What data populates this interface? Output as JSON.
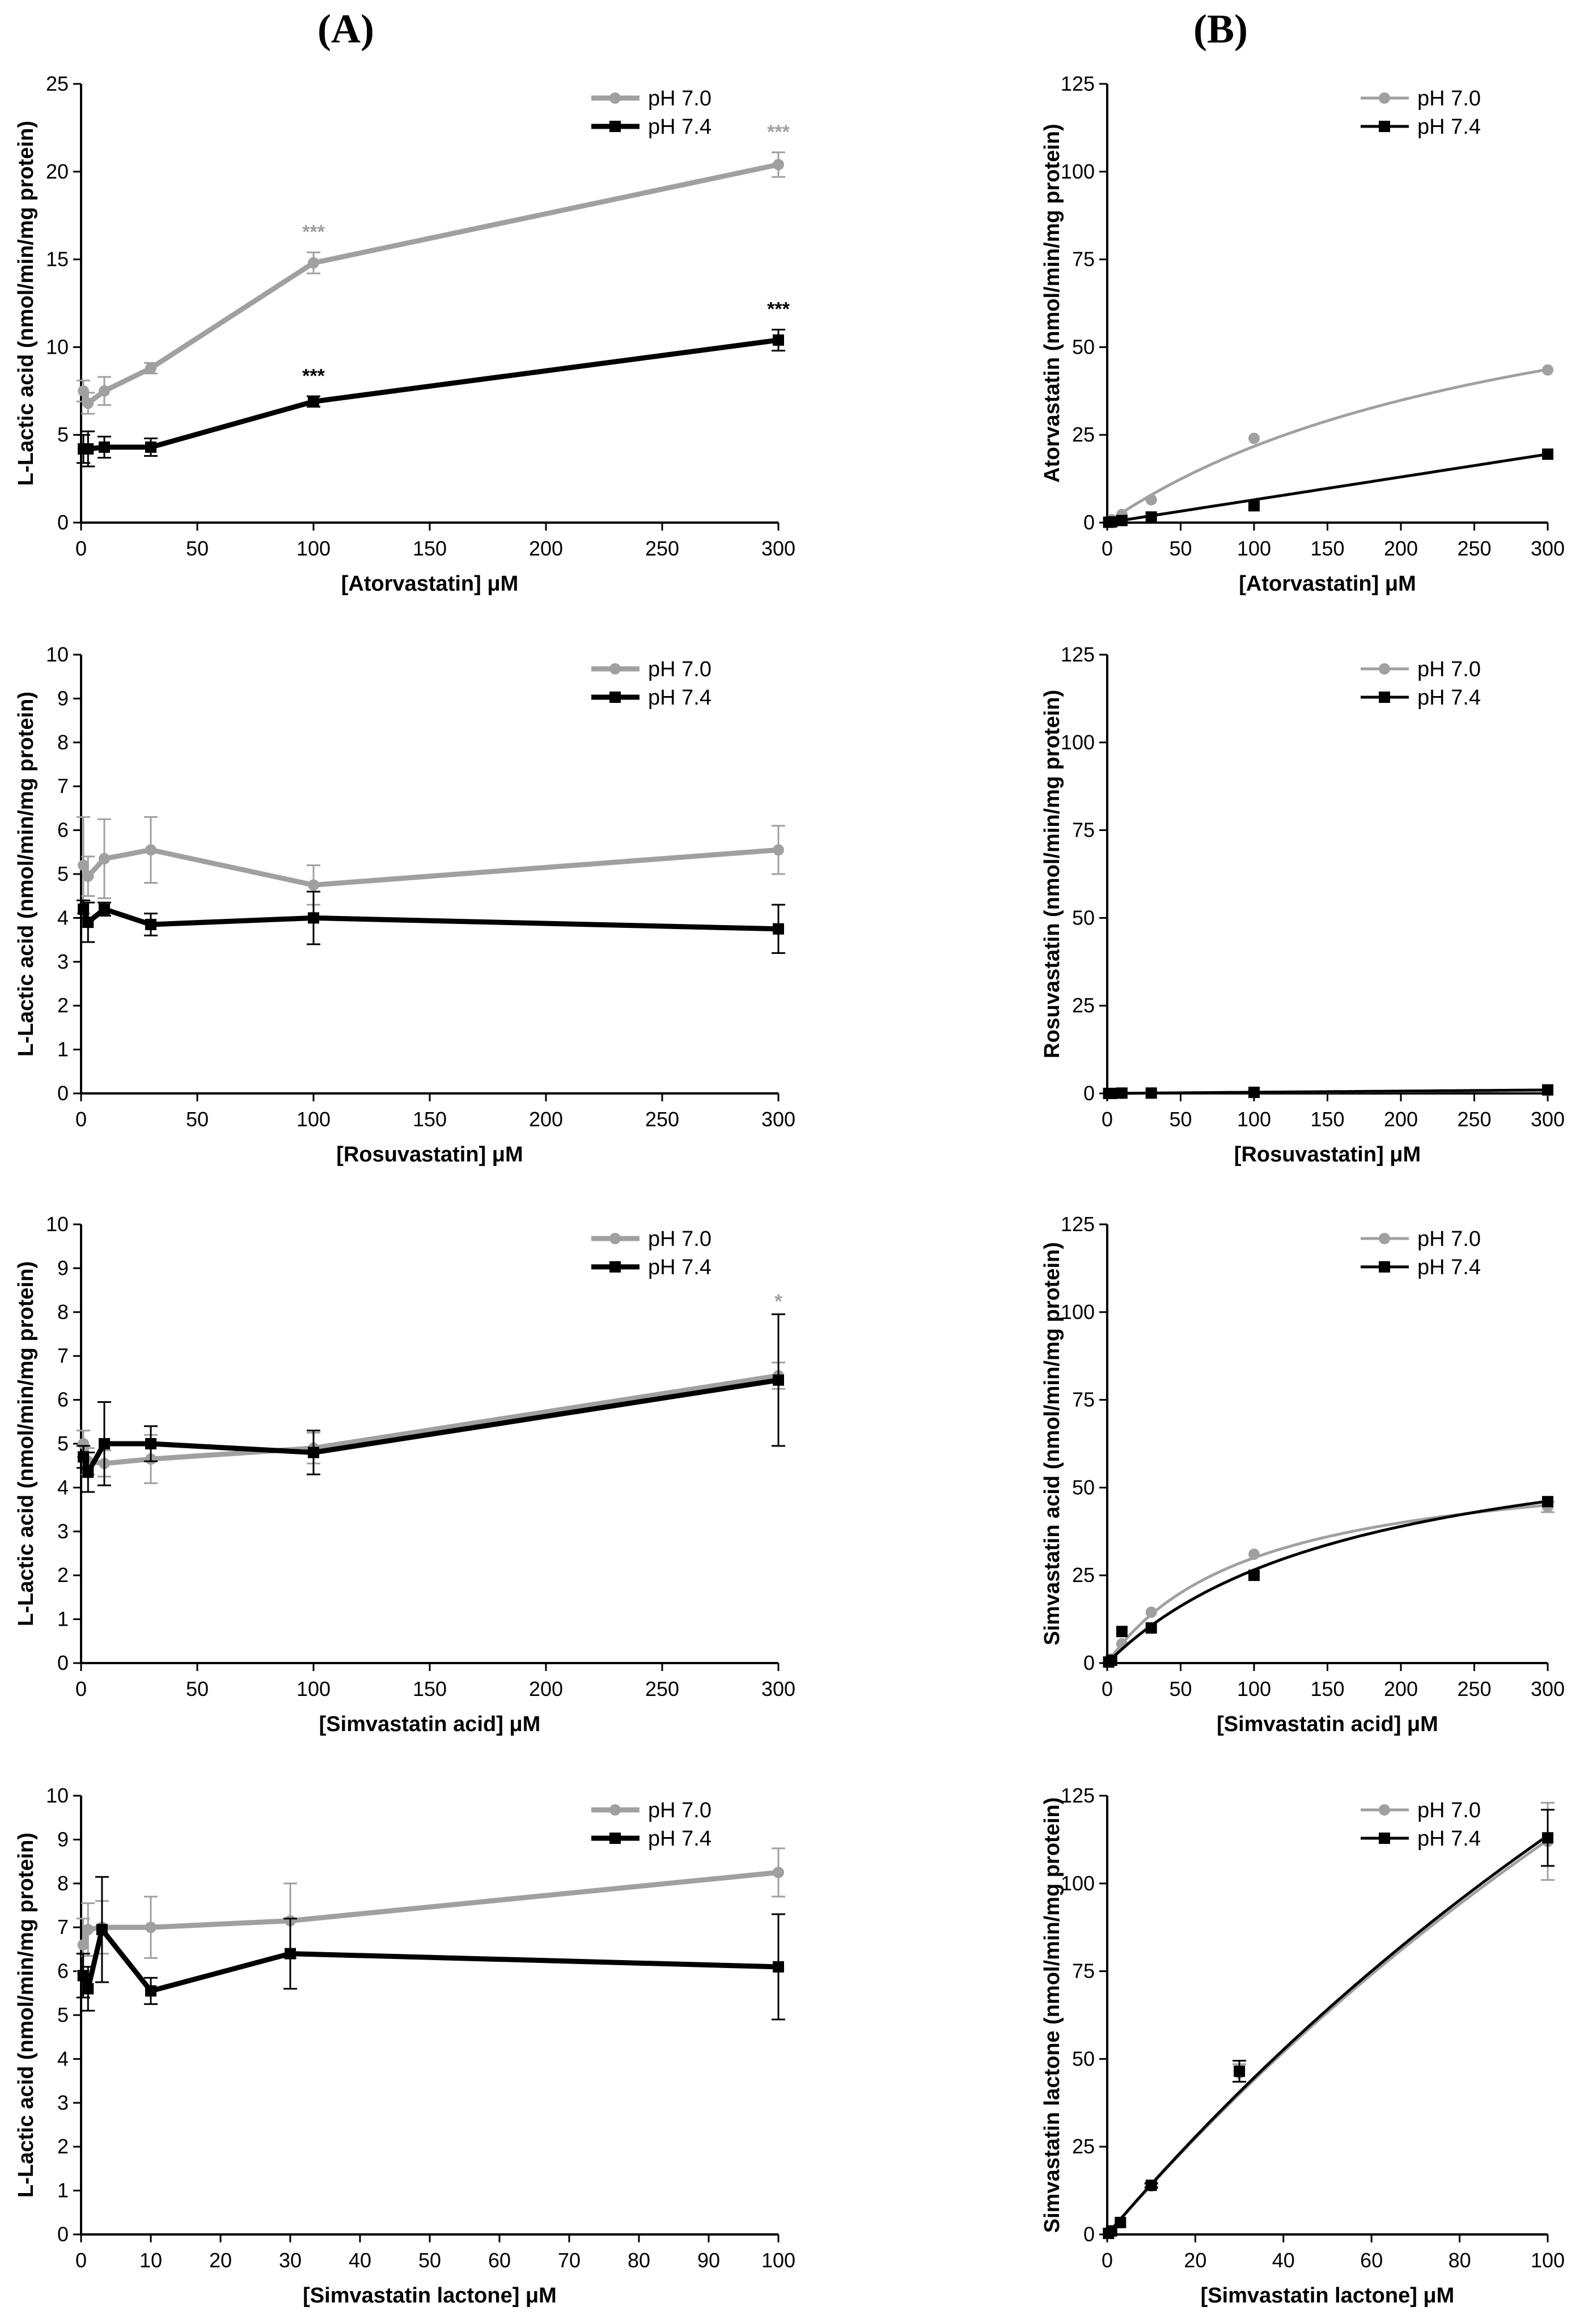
{
  "column_labels": {
    "a": "(A)",
    "b": "(B)"
  },
  "colors": {
    "ph70": "#a0a0a0",
    "ph74": "#000000"
  },
  "chart_data": [
    {
      "id": "A1",
      "type": "line",
      "title": "",
      "xlabel": "[Atorvastatin] μM",
      "ylabel": "L-Lactic acid (nmol/min/mg protein)",
      "xlim": [
        0,
        300
      ],
      "ylim": [
        0,
        25
      ],
      "xticks": [
        0,
        50,
        100,
        150,
        200,
        250,
        300
      ],
      "yticks": [
        0,
        5,
        10,
        15,
        20,
        25
      ],
      "legend": [
        "pH 7.0",
        "pH 7.4"
      ],
      "legend_position": "top-right",
      "series": [
        {
          "name": "pH 7.0",
          "x": [
            1,
            3,
            10,
            30,
            100,
            300
          ],
          "y": [
            7.5,
            6.8,
            7.5,
            8.8,
            14.8,
            20.4
          ],
          "err": [
            0.6,
            0.6,
            0.8,
            0.3,
            0.6,
            0.7
          ],
          "annotations": [
            {
              "x": 100,
              "y": 16.2,
              "text": "***"
            },
            {
              "x": 300,
              "y": 21.9,
              "text": "***"
            }
          ]
        },
        {
          "name": "pH 7.4",
          "x": [
            1,
            3,
            10,
            30,
            100,
            300
          ],
          "y": [
            4.2,
            4.2,
            4.3,
            4.3,
            6.9,
            10.4
          ],
          "err": [
            0.8,
            1.0,
            0.6,
            0.5,
            0.3,
            0.6
          ],
          "annotations": [
            {
              "x": 100,
              "y": 8.0,
              "text": "***"
            },
            {
              "x": 300,
              "y": 11.8,
              "text": "***"
            }
          ]
        }
      ]
    },
    {
      "id": "B1",
      "type": "scatter",
      "title": "",
      "xlabel": "[Atorvastatin] μM",
      "ylabel": "Atorvastatin (nmol/min/mg protein)",
      "xlim": [
        0,
        300
      ],
      "ylim": [
        0,
        125
      ],
      "xticks": [
        0,
        50,
        100,
        150,
        200,
        250,
        300
      ],
      "yticks": [
        0,
        25,
        50,
        75,
        100,
        125
      ],
      "legend": [
        "pH 7.0",
        "pH 7.4"
      ],
      "legend_position": "top-right",
      "series": [
        {
          "name": "pH 7.0",
          "x": [
            1,
            3,
            10,
            30,
            100,
            300
          ],
          "y": [
            0.3,
            0.8,
            2.3,
            6.5,
            24.0,
            43.5
          ],
          "fit": {
            "type": "mm",
            "vmax": 88,
            "km": 305
          }
        },
        {
          "name": "pH 7.4",
          "x": [
            1,
            3,
            10,
            30,
            100,
            300
          ],
          "y": [
            0.1,
            0.2,
            0.6,
            1.6,
            4.8,
            19.5
          ],
          "fit": {
            "type": "linear",
            "slope": 0.065
          }
        }
      ]
    },
    {
      "id": "A2",
      "type": "line",
      "title": "",
      "xlabel": "[Rosuvastatin] μM",
      "ylabel": "L-Lactic acid (nmol/min/mg protein)",
      "xlim": [
        0,
        300
      ],
      "ylim": [
        0,
        10
      ],
      "xticks": [
        0,
        50,
        100,
        150,
        200,
        250,
        300
      ],
      "yticks": [
        0,
        1,
        2,
        3,
        4,
        5,
        6,
        7,
        8,
        9,
        10
      ],
      "legend": [
        "pH 7.0",
        "pH 7.4"
      ],
      "legend_position": "top-right",
      "series": [
        {
          "name": "pH 7.0",
          "x": [
            1,
            3,
            10,
            30,
            100,
            300
          ],
          "y": [
            5.2,
            4.95,
            5.35,
            5.55,
            4.75,
            5.55
          ],
          "err": [
            1.1,
            0.45,
            0.9,
            0.75,
            0.45,
            0.55
          ]
        },
        {
          "name": "pH 7.4",
          "x": [
            1,
            3,
            10,
            30,
            100,
            300
          ],
          "y": [
            4.2,
            3.9,
            4.2,
            3.85,
            4.0,
            3.75
          ],
          "err": [
            0.2,
            0.45,
            0.15,
            0.25,
            0.6,
            0.55
          ]
        }
      ]
    },
    {
      "id": "B2",
      "type": "scatter",
      "title": "",
      "xlabel": "[Rosuvastatin] μM",
      "ylabel": "Rosuvastatin (nmol/min/mg protein)",
      "xlim": [
        0,
        300
      ],
      "ylim": [
        0,
        125
      ],
      "xticks": [
        0,
        50,
        100,
        150,
        200,
        250,
        300
      ],
      "yticks": [
        0,
        25,
        50,
        75,
        100,
        125
      ],
      "legend": [
        "pH 7.0",
        "pH 7.4"
      ],
      "legend_position": "top-right",
      "series": [
        {
          "name": "pH 7.0",
          "x": [
            1,
            3,
            10,
            30,
            100,
            300
          ],
          "y": [
            0.0,
            0.0,
            0.0,
            0.1,
            0.3,
            0.9
          ],
          "fit": {
            "type": "linear",
            "slope": 0.003
          }
        },
        {
          "name": "pH 7.4",
          "x": [
            1,
            3,
            10,
            30,
            100,
            300
          ],
          "y": [
            0.0,
            0.0,
            0.1,
            0.1,
            0.3,
            1.0
          ],
          "fit": {
            "type": "linear",
            "slope": 0.0033
          }
        }
      ]
    },
    {
      "id": "A3",
      "type": "line",
      "title": "",
      "xlabel": "[Simvastatin acid] μM",
      "ylabel": "L-Lactic acid (nmol/min/mg protein)",
      "xlim": [
        0,
        300
      ],
      "ylim": [
        0,
        10
      ],
      "xticks": [
        0,
        50,
        100,
        150,
        200,
        250,
        300
      ],
      "yticks": [
        0,
        1,
        2,
        3,
        4,
        5,
        6,
        7,
        8,
        9,
        10
      ],
      "legend": [
        "pH 7.0",
        "pH 7.4"
      ],
      "legend_position": "top-right",
      "series": [
        {
          "name": "pH 7.0",
          "x": [
            1,
            3,
            10,
            30,
            100,
            300
          ],
          "y": [
            5.0,
            4.6,
            4.55,
            4.65,
            4.9,
            6.55
          ],
          "err": [
            0.3,
            0.3,
            0.3,
            0.55,
            0.35,
            0.3
          ],
          "annotations": [
            {
              "x": 300,
              "y": 8.1,
              "text": "*"
            }
          ]
        },
        {
          "name": "pH 7.4",
          "x": [
            1,
            3,
            10,
            30,
            100,
            300
          ],
          "y": [
            4.7,
            4.35,
            5.0,
            5.0,
            4.8,
            6.45
          ],
          "err": [
            0.25,
            0.45,
            0.95,
            0.4,
            0.5,
            1.5
          ]
        }
      ]
    },
    {
      "id": "B3",
      "type": "scatter",
      "title": "",
      "xlabel": "[Simvastatin acid] μM",
      "ylabel": "Simvastatin acid (nmol/min/mg protein)",
      "xlim": [
        0,
        300
      ],
      "ylim": [
        0,
        125
      ],
      "xticks": [
        0,
        50,
        100,
        150,
        200,
        250,
        300
      ],
      "yticks": [
        0,
        25,
        50,
        75,
        100,
        125
      ],
      "legend": [
        "pH 7.0",
        "pH 7.4"
      ],
      "legend_position": "top-right",
      "series": [
        {
          "name": "pH 7.0",
          "x": [
            1,
            3,
            10,
            30,
            100,
            300
          ],
          "y": [
            0.5,
            1.2,
            5.5,
            14.5,
            31.0,
            44.5
          ],
          "err": [
            0,
            0,
            0,
            0,
            0,
            1.5
          ],
          "fit": {
            "type": "mm",
            "vmax": 60,
            "km": 100
          }
        },
        {
          "name": "pH 7.4",
          "x": [
            1,
            3,
            10,
            30,
            100,
            300
          ],
          "y": [
            0.3,
            0.8,
            9.0,
            10.0,
            25.0,
            46.0
          ],
          "fit": {
            "type": "mm",
            "vmax": 73,
            "km": 175
          }
        }
      ]
    },
    {
      "id": "A4",
      "type": "line",
      "title": "",
      "xlabel": "[Simvastatin lactone] μM",
      "ylabel": "L-Lactic acid (nmol/min/mg protein)",
      "xlim": [
        0,
        100
      ],
      "ylim": [
        0,
        10
      ],
      "xticks": [
        0,
        10,
        20,
        30,
        40,
        50,
        60,
        70,
        80,
        90,
        100
      ],
      "yticks": [
        0,
        1,
        2,
        3,
        4,
        5,
        6,
        7,
        8,
        9,
        10
      ],
      "legend": [
        "pH 7.0",
        "pH 7.4"
      ],
      "legend_position": "top-right",
      "series": [
        {
          "name": "pH 7.0",
          "x": [
            0.3,
            1,
            3,
            10,
            30,
            100
          ],
          "y": [
            6.6,
            6.95,
            7.0,
            7.0,
            7.15,
            8.25
          ],
          "err": [
            0.6,
            0.6,
            0.6,
            0.7,
            0.85,
            0.55
          ]
        },
        {
          "name": "pH 7.4",
          "x": [
            0.3,
            1,
            3,
            10,
            30,
            100
          ],
          "y": [
            5.9,
            5.6,
            6.95,
            5.55,
            6.4,
            6.1
          ],
          "err": [
            0.5,
            0.5,
            1.2,
            0.3,
            0.8,
            1.2
          ]
        }
      ]
    },
    {
      "id": "B4",
      "type": "scatter",
      "title": "",
      "xlabel": "[Simvastatin lactone] μM",
      "ylabel": "Simvastatin lactone (nmol/min/mg protein)",
      "xlim": [
        0,
        100
      ],
      "ylim": [
        0,
        125
      ],
      "xticks": [
        0,
        20,
        40,
        60,
        80,
        100
      ],
      "yticks": [
        0,
        25,
        50,
        75,
        100,
        125
      ],
      "legend": [
        "pH 7.0",
        "pH 7.4"
      ],
      "legend_position": "top-right",
      "series": [
        {
          "name": "pH 7.0",
          "x": [
            0.3,
            1,
            3,
            10,
            30,
            100
          ],
          "y": [
            0.3,
            1.0,
            3.3,
            13.8,
            46.0,
            112.0
          ],
          "err": [
            0,
            0,
            0,
            0.6,
            2.5,
            11.0
          ],
          "fit": {
            "type": "mm",
            "vmax": 500,
            "km": 345
          }
        },
        {
          "name": "pH 7.4",
          "x": [
            0.3,
            1,
            3,
            10,
            30,
            100
          ],
          "y": [
            0.3,
            1.0,
            3.4,
            14.0,
            46.5,
            113.0
          ],
          "err": [
            0,
            0,
            0,
            0.6,
            3.0,
            8.0
          ],
          "fit": {
            "type": "mm",
            "vmax": 500,
            "km": 340
          }
        }
      ]
    }
  ]
}
